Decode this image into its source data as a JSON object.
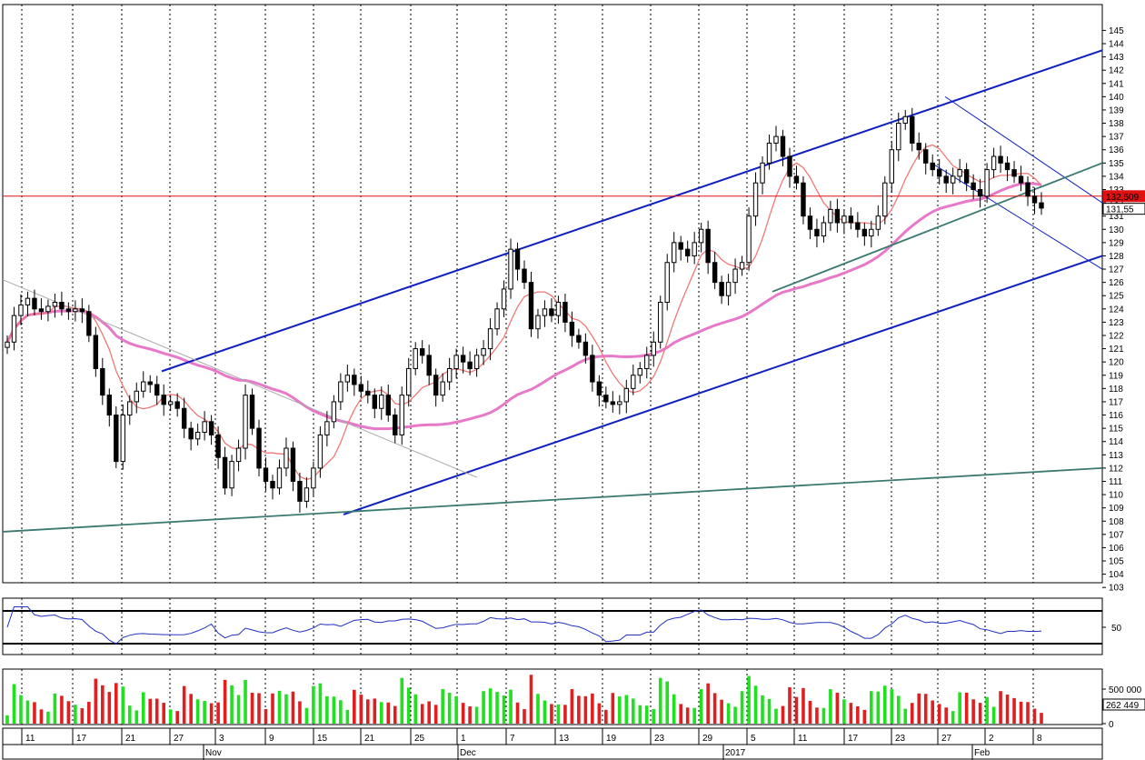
{
  "chart_data": [
    {
      "type": "candlestick",
      "panel": "price",
      "y_axis": {
        "min": 103,
        "max": 145,
        "step": 1,
        "position": "right"
      },
      "x_ticks": [
        "11",
        "17",
        "21",
        "27",
        "3",
        "9",
        "15",
        "21",
        "25",
        "1",
        "7",
        "13",
        "19",
        "23",
        "29",
        "5",
        "11",
        "17",
        "23",
        "27",
        "2",
        "8"
      ],
      "x_months": [
        "Nov",
        "Dec",
        "2017",
        "Feb"
      ],
      "price_tags": [
        {
          "label": "132,509",
          "value": 132.5,
          "color": "#e01010"
        },
        {
          "label": "131,55",
          "value": 131.55,
          "color": "#ffffff"
        }
      ],
      "close_series": [
        121.5,
        123.5,
        124.3,
        124.8,
        124.0,
        123.8,
        124.2,
        124.5,
        124.0,
        123.8,
        124.0,
        123.8,
        122.0,
        119.5,
        117.5,
        116.0,
        112.5,
        116.0,
        117.0,
        117.8,
        118.5,
        118.3,
        117.5,
        116.8,
        117.0,
        116.5,
        115.0,
        114.2,
        114.7,
        115.5,
        114.5,
        112.8,
        110.5,
        112.5,
        113.5,
        117.5,
        115.0,
        112.0,
        111.0,
        110.5,
        112.0,
        113.5,
        111.0,
        109.5,
        110.5,
        112.0,
        114.5,
        115.5,
        117.0,
        118.5,
        119.0,
        118.3,
        117.8,
        117.5,
        116.5,
        117.5,
        116.0,
        114.5,
        117.5,
        119.5,
        121.0,
        120.5,
        119.0,
        117.5,
        118.5,
        119.5,
        120.5,
        120.0,
        119.5,
        120.5,
        121.0,
        122.5,
        124.0,
        125.5,
        128.5,
        127.0,
        126.0,
        122.5,
        123.5,
        124.0,
        123.5,
        124.5,
        123.0,
        122.0,
        121.5,
        120.5,
        118.5,
        117.5,
        117.0,
        116.8,
        117.0,
        118.0,
        119.0,
        119.5,
        120.5,
        121.5,
        124.5,
        127.5,
        129.0,
        128.5,
        128.0,
        129.0,
        130.0,
        127.5,
        126.0,
        125.0,
        126.0,
        127.0,
        127.5,
        131.0,
        133.5,
        135.0,
        136.5,
        137.0,
        135.5,
        134.0,
        133.5,
        131.0,
        130.0,
        129.5,
        130.5,
        131.5,
        130.5,
        131.0,
        130.5,
        130.0,
        129.5,
        130.0,
        131.0,
        133.5,
        136.0,
        138.0,
        138.5,
        136.5,
        136.0,
        135.0,
        134.5,
        134.0,
        133.5,
        134.0,
        134.5,
        133.5,
        133.0,
        132.5,
        134.5,
        135.5,
        135.0,
        134.5,
        134.0,
        133.5,
        132.5,
        132.0,
        131.6
      ],
      "annotations": [
        "Rising channel: upper line 119.3 -> 143.5, lower line 108.5 -> 128.0",
        "Support line 107.2 -> 112.0",
        "Declining trend line 126.2 -> 111.3",
        "Short-term channel 135.0 -> 127.0 / 140.0 -> 132.0",
        "Line 125.3 -> 135.0",
        "Horizontal level 132.5"
      ],
      "moving_averages": [
        {
          "kind": "short",
          "color": "#f07878"
        },
        {
          "kind": "long",
          "color": "#e878c8"
        }
      ]
    },
    {
      "type": "line",
      "panel": "oscillator",
      "y_ticks": [
        "50"
      ],
      "reference_levels": [
        70,
        30
      ],
      "series_color": "#2030c0"
    },
    {
      "type": "bar",
      "panel": "volume",
      "y_ticks": [
        "500 000"
      ],
      "last_value_label": "262 449",
      "up_color": "#20e020",
      "down_color": "#e02020"
    }
  ]
}
